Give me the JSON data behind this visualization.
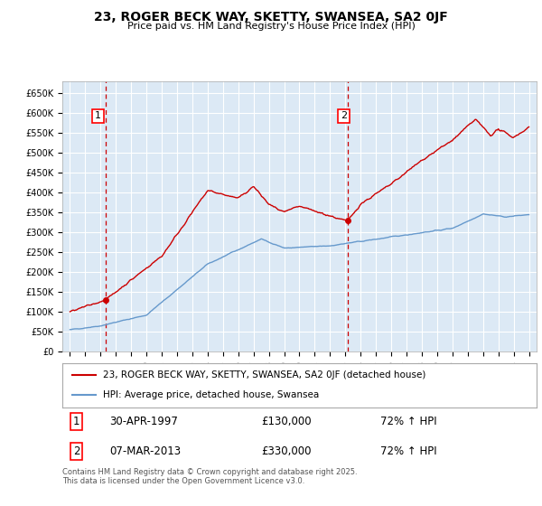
{
  "title": "23, ROGER BECK WAY, SKETTY, SWANSEA, SA2 0JF",
  "subtitle": "Price paid vs. HM Land Registry's House Price Index (HPI)",
  "plot_bg": "#dce9f5",
  "grid_color": "#ffffff",
  "red_color": "#cc0000",
  "blue_color": "#6699cc",
  "dashed_red": "#cc0000",
  "annotation1": {
    "label": "1",
    "date_str": "30-APR-1997",
    "price": 130000,
    "hpi_pct": "72% ↑ HPI",
    "x_year": 1997.33
  },
  "annotation2": {
    "label": "2",
    "date_str": "07-MAR-2013",
    "price": 330000,
    "hpi_pct": "72% ↑ HPI",
    "x_year": 2013.18
  },
  "legend_line1": "23, ROGER BECK WAY, SKETTY, SWANSEA, SA2 0JF (detached house)",
  "legend_line2": "HPI: Average price, detached house, Swansea",
  "footer": "Contains HM Land Registry data © Crown copyright and database right 2025.\nThis data is licensed under the Open Government Licence v3.0.",
  "ylim": [
    0,
    680000
  ],
  "xlim": [
    1994.5,
    2025.5
  ],
  "yticks": [
    0,
    50000,
    100000,
    150000,
    200000,
    250000,
    300000,
    350000,
    400000,
    450000,
    500000,
    550000,
    600000,
    650000
  ],
  "ytick_labels": [
    "£0",
    "£50K",
    "£100K",
    "£150K",
    "£200K",
    "£250K",
    "£300K",
    "£350K",
    "£400K",
    "£450K",
    "£500K",
    "£550K",
    "£600K",
    "£650K"
  ],
  "xticks": [
    1995,
    1996,
    1997,
    1998,
    1999,
    2000,
    2001,
    2002,
    2003,
    2004,
    2005,
    2006,
    2007,
    2008,
    2009,
    2010,
    2011,
    2012,
    2013,
    2014,
    2015,
    2016,
    2017,
    2018,
    2019,
    2020,
    2021,
    2022,
    2023,
    2024,
    2025
  ]
}
